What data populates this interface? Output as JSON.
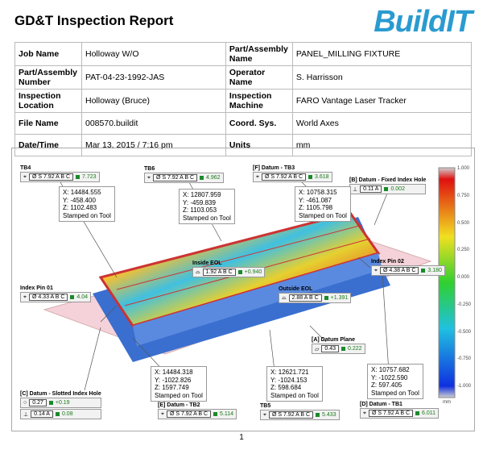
{
  "header": {
    "title": "GD&T Inspection Report",
    "logo": "BuildIT"
  },
  "table": {
    "rows": [
      [
        "Job Name",
        "Holloway W/O",
        "Part/Assembly Name",
        "PANEL_MILLING FIXTURE"
      ],
      [
        "Part/Assembly Number",
        "PAT-04-23-1992-JAS",
        "Operator Name",
        "S. Harrisson"
      ],
      [
        "Inspection Location",
        "Holloway (Bruce)",
        "Inspection Machine",
        "FARO Vantage Laser Tracker"
      ],
      [
        "File Name",
        "008570.buildit",
        "Coord. Sys.",
        "World Axes"
      ],
      [
        "Date/Time",
        "Mar 13, 2015 / 7:16 pm",
        "Units",
        "mm"
      ]
    ]
  },
  "figure": {
    "callouts": [
      {
        "title": "TB4",
        "rows": [
          {
            "symbol": "⌖",
            "tol": "Ø S 7.92 A B C",
            "value": "7.723"
          }
        ]
      },
      {
        "title": "TB6",
        "rows": [
          {
            "symbol": "⌖",
            "tol": "Ø S 7.92 A B C",
            "value": "4.962"
          }
        ]
      },
      {
        "title": "[F] Datum - TB3",
        "rows": [
          {
            "symbol": "⌖",
            "tol": "Ø S 7.92 A B C",
            "value": "3.618"
          }
        ]
      },
      {
        "title": "[B] Datum - Fixed Index Hole",
        "rows": [
          {
            "symbol": "⊥",
            "tol": "0.11 A",
            "value": "0.002"
          }
        ]
      },
      {
        "title": "Index Pin 02",
        "rows": [
          {
            "symbol": "⌖",
            "tol": "Ø 4.38 A B C",
            "value": "3.180"
          }
        ]
      },
      {
        "title": "Inside EOL",
        "rows": [
          {
            "symbol": "⌓",
            "tol": "1.92 A B C",
            "value": "+0.940"
          }
        ]
      },
      {
        "title": "Index Pin 01",
        "rows": [
          {
            "symbol": "⌖",
            "tol": "Ø 4.33 A B C",
            "value": "4.04"
          }
        ]
      },
      {
        "title": "Outside EOL",
        "rows": [
          {
            "symbol": "⌓",
            "tol": "2.88 A B C",
            "value": "+1.391"
          }
        ]
      },
      {
        "title": "[A] Datum Plane",
        "rows": [
          {
            "symbol": "▱",
            "tol": "0.43",
            "value": "0.222"
          }
        ]
      },
      {
        "title": "[C] Datum - Slotted Index Hole",
        "rows": [
          {
            "symbol": "○",
            "tol": "0.27",
            "value": "+0.19"
          },
          {
            "symbol": "⊥",
            "tol": "0.14 A",
            "value": "0.08"
          }
        ]
      },
      {
        "title": "[E] Datum - TB2",
        "rows": [
          {
            "symbol": "⌖",
            "tol": "Ø S 7.92 A B C",
            "value": "5.114"
          }
        ]
      },
      {
        "title": "TB5",
        "rows": [
          {
            "symbol": "⌖",
            "tol": "Ø S 7.92 A B C",
            "value": "5.433"
          }
        ]
      },
      {
        "title": "[D] Datum - TB1",
        "rows": [
          {
            "symbol": "⌖",
            "tol": "Ø S 7.92 A B C",
            "value": "6.011"
          }
        ]
      }
    ],
    "coordinates": [
      {
        "lines": [
          "X: 14484.555",
          "Y: -458.400",
          "Z: 1102.483"
        ],
        "note": "Stamped on Tool"
      },
      {
        "lines": [
          "X: 12807.959",
          "Y: -459.839",
          "Z: 1103.053"
        ],
        "note": "Stamped on Tool"
      },
      {
        "lines": [
          "X: 10758.315",
          "Y: -461.087",
          "Z: 1105.798"
        ],
        "note": "Stamped on Tool"
      },
      {
        "lines": [
          "X: 14484.318",
          "Y: -1022.826",
          "Z: 1597.749"
        ],
        "note": "Stamped on Tool"
      },
      {
        "lines": [
          "X: 12621.721",
          "Y: -1024.153",
          "Z: 598.684"
        ],
        "note": "Stamped on Tool"
      },
      {
        "lines": [
          "X: 10757.682",
          "Y: -1022.590",
          "Z: 597.405"
        ],
        "note": "Stamped on Tool"
      }
    ],
    "color_scale": {
      "labels": [
        "1.000",
        "0.750",
        "0.500",
        "0.250",
        "0.000",
        "-0.250",
        "-0.500",
        "-0.750",
        "-1.000"
      ],
      "unit": "mm"
    }
  },
  "page_number": "1"
}
